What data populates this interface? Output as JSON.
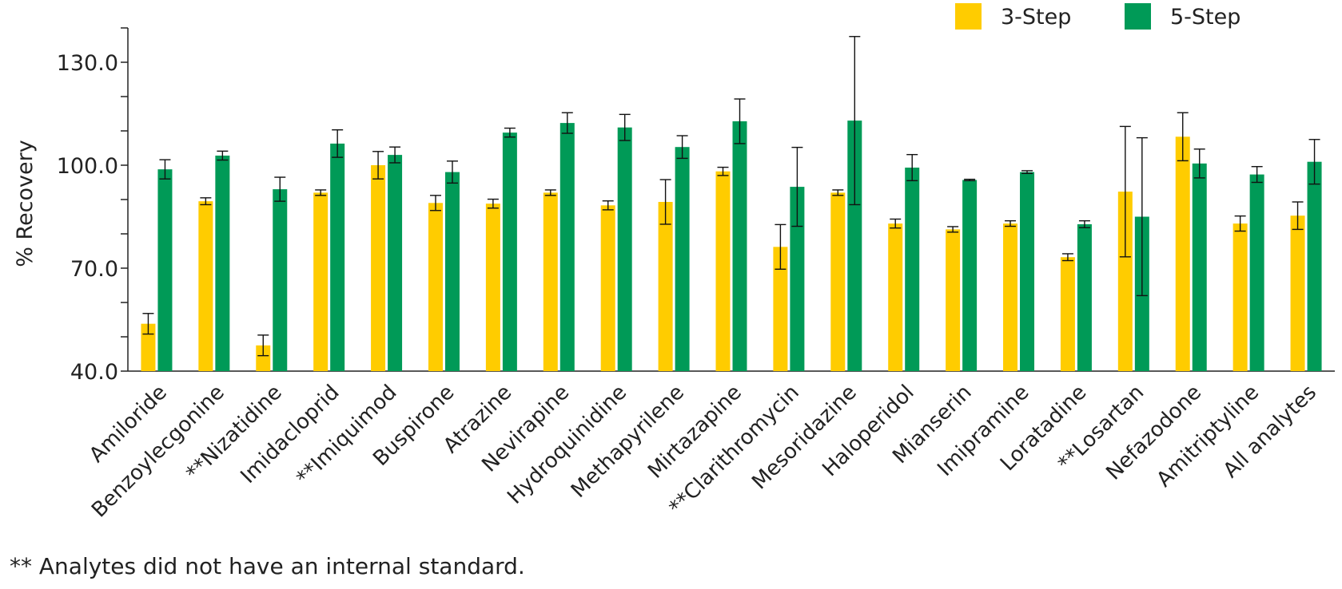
{
  "chart_data": {
    "type": "bar",
    "title": "",
    "xlabel": "",
    "ylabel": "% Recovery",
    "ylim": [
      40,
      140
    ],
    "yticks": [
      40,
      70,
      100,
      130
    ],
    "ytick_labels": [
      "40.0",
      "70.0",
      "100.0",
      "130.0"
    ],
    "grid": false,
    "legend": "top-right",
    "categories": [
      "Amiloride",
      "Benzoylecgonine",
      "**Nizatidine",
      "Imidacloprid",
      "**Imiquimod",
      "Buspirone",
      "Atrazine",
      "Nevirapine",
      "Hydroquinidine",
      "Methapyrilene",
      "Mirtazapine",
      "**Clarithromycin",
      "Mesoridazine",
      "Haloperidol",
      "Mianserin",
      "Imipramine",
      "Loratadine",
      "**Losartan",
      "Nefazodone",
      "Amitriptyline",
      "All analytes"
    ],
    "series": [
      {
        "name": "3-Step",
        "color": "#FFCC00",
        "values": [
          53.8,
          89.5,
          47.5,
          92.0,
          100.0,
          89.0,
          88.8,
          92.0,
          88.3,
          89.3,
          98.2,
          76.2,
          92.0,
          83.0,
          81.3,
          83.0,
          73.2,
          92.3,
          108.3,
          83.0,
          85.3
        ],
        "errors": [
          3.0,
          1.0,
          3.0,
          0.8,
          4.0,
          2.2,
          1.3,
          0.8,
          1.3,
          6.5,
          1.2,
          6.5,
          0.8,
          1.3,
          0.8,
          0.8,
          1.0,
          19.0,
          7.0,
          2.2,
          4.0
        ]
      },
      {
        "name": "5-Step",
        "color": "#009A57",
        "values": [
          98.8,
          102.8,
          93.0,
          106.3,
          103.0,
          98.0,
          109.5,
          112.3,
          111.0,
          105.3,
          112.8,
          93.7,
          113.0,
          99.3,
          95.7,
          98.0,
          82.8,
          85.0,
          100.5,
          97.3,
          101.0
        ],
        "errors": [
          2.8,
          1.3,
          3.5,
          4.0,
          2.3,
          3.2,
          1.3,
          3.0,
          3.8,
          3.3,
          6.5,
          11.5,
          24.5,
          3.8,
          0.2,
          0.4,
          1.0,
          23.0,
          4.2,
          2.3,
          6.5
        ]
      }
    ],
    "footnote": "** Analytes did not have an internal standard."
  }
}
